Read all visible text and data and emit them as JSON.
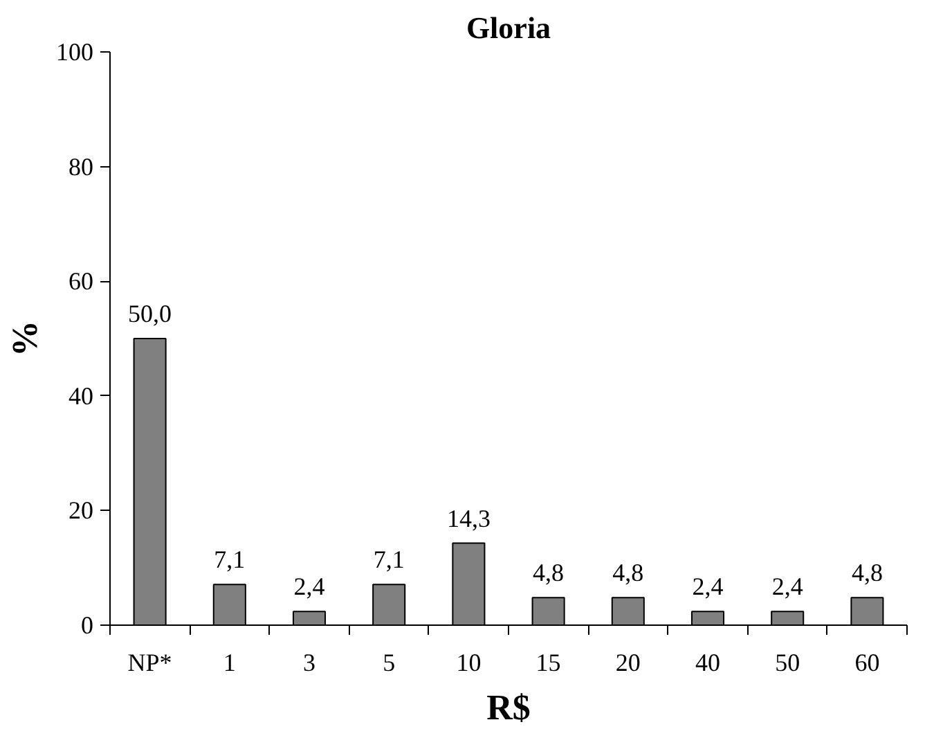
{
  "chart_data": {
    "type": "bar",
    "title": "Gloria",
    "xlabel": "R$",
    "ylabel": "%",
    "categories": [
      "NP*",
      "1",
      "3",
      "5",
      "10",
      "15",
      "20",
      "40",
      "50",
      "60"
    ],
    "values": [
      50.0,
      7.1,
      2.4,
      7.1,
      14.3,
      4.8,
      4.8,
      2.4,
      2.4,
      4.8
    ],
    "value_labels": [
      "50,0",
      "7,1",
      "2,4",
      "7,1",
      "14,3",
      "4,8",
      "4,8",
      "2,4",
      "2,4",
      "4,8"
    ],
    "color": "#808080",
    "ylim": [
      0,
      100
    ],
    "yticks": [
      0,
      20,
      40,
      60,
      80,
      100
    ],
    "grid": false
  }
}
